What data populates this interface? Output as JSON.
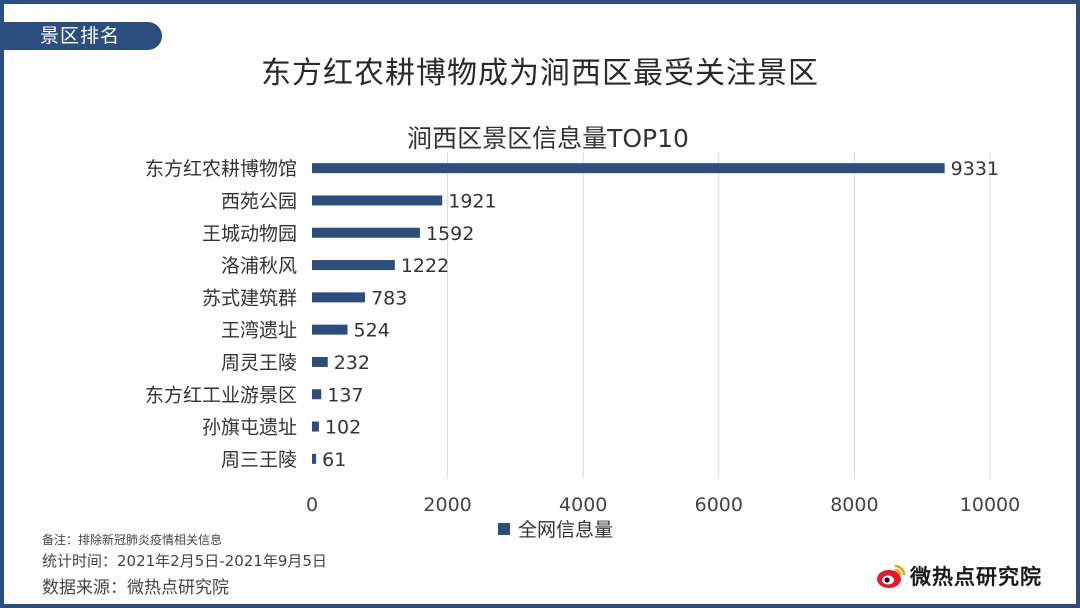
{
  "section_tab": "景区排名",
  "main_title": "东方红农耕博物成为涧西区最受关注景区",
  "footnotes": {
    "note": "备注：排除新冠肺炎疫情相关信息",
    "period": "统计时间：2021年2月5日-2021年9月5日",
    "source": "数据来源：微热点研究院"
  },
  "brand": {
    "name": "微热点研究院",
    "logo_icon": "weibo-eye-logo",
    "logo_color": "#e6162d"
  },
  "colors": {
    "frame": "#2b4e7e",
    "bar": "#2b4e7e",
    "grid": "#d9d9d9"
  },
  "chart_data": {
    "type": "bar",
    "orientation": "horizontal",
    "title": "涧西区景区信息量TOP10",
    "categories": [
      "东方红农耕博物馆",
      "西苑公园",
      "王城动物园",
      "洛浦秋风",
      "苏式建筑群",
      "王湾遗址",
      "周灵王陵",
      "东方红工业游景区",
      "孙旗屯遗址",
      "周三王陵"
    ],
    "series": [
      {
        "name": "全网信息量",
        "values": [
          9331,
          1921,
          1592,
          1222,
          783,
          524,
          232,
          137,
          102,
          61
        ]
      }
    ],
    "xlim": [
      0,
      10000
    ],
    "xticks": [
      0,
      2000,
      4000,
      6000,
      8000,
      10000
    ],
    "grid": true,
    "legend_position": "bottom",
    "data_labels": true
  }
}
